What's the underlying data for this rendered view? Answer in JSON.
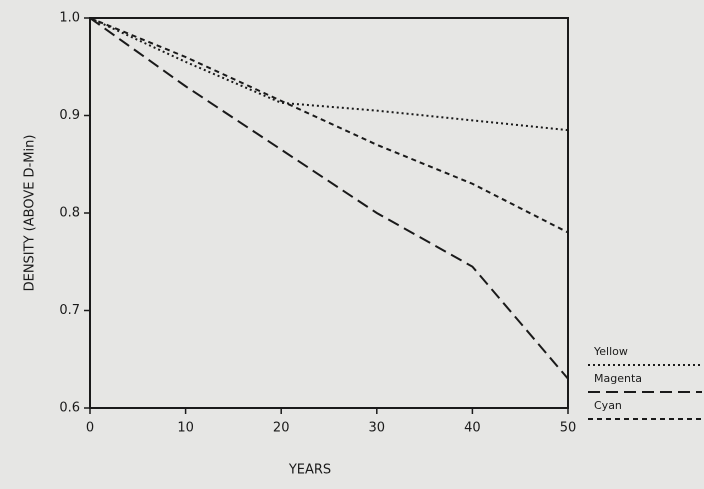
{
  "chart_data": {
    "type": "line",
    "xlabel": "YEARS",
    "ylabel": "DENSITY (ABOVE D-Min)",
    "x": [
      0,
      10,
      20,
      30,
      40,
      50
    ],
    "series": [
      {
        "name": "Yellow",
        "color": "#1a1a1a",
        "dash": "dotted",
        "values": [
          1.0,
          0.955,
          0.913,
          0.905,
          0.895,
          0.885
        ]
      },
      {
        "name": "Magenta",
        "color": "#1a1a1a",
        "dash": "long-dash",
        "values": [
          1.0,
          0.93,
          0.865,
          0.8,
          0.745,
          0.63
        ]
      },
      {
        "name": "Cyan",
        "color": "#1a1a1a",
        "dash": "short-dash",
        "values": [
          1.0,
          0.96,
          0.915,
          0.87,
          0.83,
          0.78
        ]
      }
    ],
    "xlim": [
      0,
      50
    ],
    "xticks": [
      0,
      10,
      20,
      30,
      40,
      50
    ],
    "ylim": [
      0.6,
      1.0
    ],
    "yticks": [
      {
        "value": 0.6,
        "label": "0.6"
      },
      {
        "value": 0.7,
        "label": "0.7"
      },
      {
        "value": 0.8,
        "label": "0.8"
      },
      {
        "value": 0.9,
        "label": "0.9"
      },
      {
        "value": 1.0,
        "label": "1.0"
      }
    ],
    "legend": "lower right"
  }
}
